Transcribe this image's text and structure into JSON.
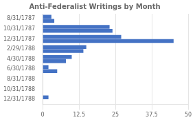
{
  "chart_data": {
    "type": "bar",
    "orientation": "horizontal",
    "title": "Anti-Federalist Writings by Month",
    "categories": [
      "8/31/1787",
      "10/31/1787",
      "12/31/1787",
      "2/29/1788",
      "4/30/1788",
      "6/30/1788",
      "8/31/1788",
      "10/31/1788",
      "12/31/1788"
    ],
    "series": [
      {
        "color": "#4472C4",
        "values": [
          3,
          23,
          27,
          15,
          10,
          2,
          0,
          0,
          2
        ]
      },
      {
        "color": "#4472C4",
        "values": [
          4,
          24,
          45,
          14,
          8,
          5,
          0,
          0,
          0
        ]
      }
    ],
    "xlim": [
      0,
      50
    ],
    "xticks": [
      0,
      12.5,
      25,
      37.5,
      50
    ],
    "grid": true
  }
}
